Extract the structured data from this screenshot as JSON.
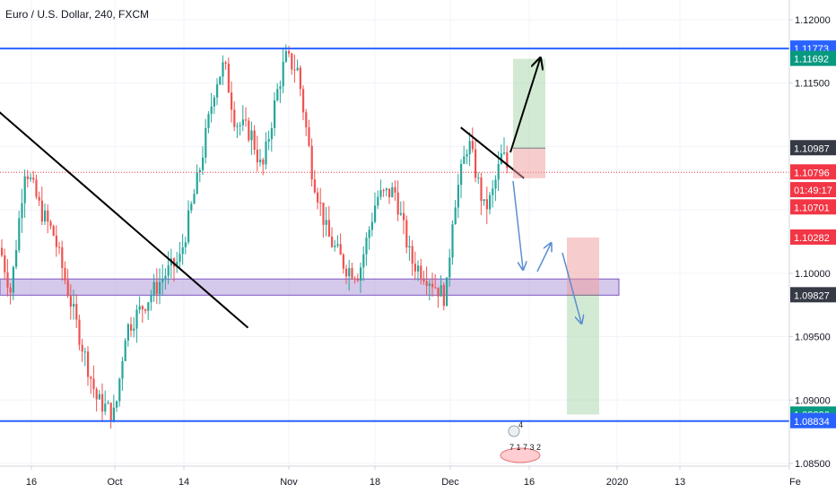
{
  "chart_data": {
    "type": "candlestick",
    "title": "Euro / U.S. Dollar, 240, FXCM",
    "ylim": [
      1.085,
      1.1215
    ],
    "y_ticks": [
      "1.12000",
      "1.11500",
      "1.10000",
      "1.09500",
      "1.09000",
      "1.08500"
    ],
    "x_ticks": [
      "16",
      "Oct",
      "14",
      "Nov",
      "18",
      "Dec",
      "16",
      "2020",
      "13",
      "Fe"
    ],
    "price_tags": [
      {
        "label": "1.11773",
        "value": 1.11773,
        "color": "#2962ff"
      },
      {
        "label": "1.11692",
        "value": 1.11692,
        "color": "#089981"
      },
      {
        "label": "1.10987",
        "value": 1.10987,
        "color": "#363a45"
      },
      {
        "label": "1.10796",
        "value": 1.10796,
        "color": "#f23645"
      },
      {
        "label": "01:49:17",
        "value": 1.10656,
        "color": "#f23645"
      },
      {
        "label": "1.10701",
        "value": 1.1052,
        "color": "#f23645"
      },
      {
        "label": "1.10282",
        "value": 1.10282,
        "color": "#f23645"
      },
      {
        "label": "1.09827",
        "value": 1.09827,
        "color": "#363a45"
      },
      {
        "label": "1.08886",
        "value": 1.08886,
        "color": "#089981"
      },
      {
        "label": "1.08834",
        "value": 1.08834,
        "color": "#2962ff"
      }
    ],
    "horizontal_levels": [
      {
        "value": 1.11773,
        "color": "#2962ff"
      },
      {
        "value": 1.08834,
        "color": "#2962ff"
      }
    ],
    "current_price": 1.10796,
    "zone": {
      "from": 1.09827,
      "to": 1.09955,
      "color": "#b39ddb"
    },
    "trendlines": [
      {
        "from": [
          "Sep 5",
          1.113
        ],
        "to": [
          "Oct 25",
          1.0957
        ]
      },
      {
        "from": [
          "Dec 3",
          1.1115
        ],
        "to": [
          "Dec 15",
          1.1075
        ]
      }
    ],
    "positions": [
      {
        "entry": 1.10987,
        "target": 1.11692,
        "stop": 1.1075
      },
      {
        "entry": 1.09827,
        "target": 1.08886,
        "stop": 1.10282
      }
    ],
    "events": {
      "top": "4",
      "bottom": "7 1 7 3 2"
    },
    "colors": {
      "up": "#26a69a",
      "down": "#ef5350",
      "grid": "#f0f3fa"
    }
  }
}
